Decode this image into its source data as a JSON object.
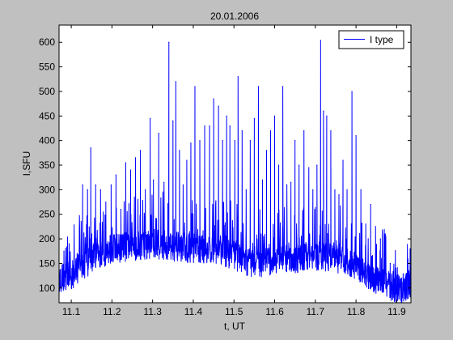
{
  "chart_data": {
    "type": "line",
    "title": "20.01.2006",
    "xlabel": "t, UT",
    "ylabel": "I,SFU",
    "xlim": [
      11.07,
      11.935
    ],
    "ylim": [
      70,
      635
    ],
    "xticks": [
      11.1,
      11.2,
      11.3,
      11.4,
      11.5,
      11.6,
      11.7,
      11.8,
      11.9
    ],
    "xtick_labels": [
      "11.1",
      "11.2",
      "11.3",
      "11.4",
      "11.5",
      "11.6",
      "11.7",
      "11.8",
      "11.9"
    ],
    "yticks": [
      100,
      150,
      200,
      250,
      300,
      350,
      400,
      450,
      500,
      550,
      600
    ],
    "ytick_labels": [
      "100",
      "150",
      "200",
      "250",
      "300",
      "350",
      "400",
      "450",
      "500",
      "550",
      "600"
    ],
    "grid": false,
    "legend_position": "top-right",
    "series": [
      {
        "name": "I type",
        "color": "#0000ff",
        "baseline": [
          [
            11.07,
            120
          ],
          [
            11.1,
            125
          ],
          [
            11.13,
            145
          ],
          [
            11.16,
            165
          ],
          [
            11.2,
            180
          ],
          [
            11.25,
            185
          ],
          [
            11.3,
            190
          ],
          [
            11.35,
            185
          ],
          [
            11.4,
            180
          ],
          [
            11.45,
            178
          ],
          [
            11.5,
            168
          ],
          [
            11.53,
            150
          ],
          [
            11.57,
            150
          ],
          [
            11.6,
            155
          ],
          [
            11.65,
            160
          ],
          [
            11.7,
            165
          ],
          [
            11.75,
            162
          ],
          [
            11.8,
            145
          ],
          [
            11.83,
            125
          ],
          [
            11.86,
            115
          ],
          [
            11.88,
            105
          ],
          [
            11.9,
            98
          ],
          [
            11.92,
            100
          ],
          [
            11.935,
            110
          ]
        ],
        "spikes": [
          [
            11.082,
            175
          ],
          [
            11.095,
            190
          ],
          [
            11.112,
            160
          ],
          [
            11.128,
            310
          ],
          [
            11.14,
            300
          ],
          [
            11.148,
            385
          ],
          [
            11.16,
            310
          ],
          [
            11.172,
            300
          ],
          [
            11.185,
            275
          ],
          [
            11.198,
            310
          ],
          [
            11.21,
            330
          ],
          [
            11.222,
            260
          ],
          [
            11.234,
            355
          ],
          [
            11.246,
            340
          ],
          [
            11.258,
            365
          ],
          [
            11.27,
            380
          ],
          [
            11.282,
            300
          ],
          [
            11.294,
            445
          ],
          [
            11.302,
            320
          ],
          [
            11.315,
            415
          ],
          [
            11.328,
            315
          ],
          [
            11.34,
            600
          ],
          [
            11.35,
            440
          ],
          [
            11.357,
            520
          ],
          [
            11.366,
            380
          ],
          [
            11.375,
            310
          ],
          [
            11.384,
            360
          ],
          [
            11.394,
            395
          ],
          [
            11.404,
            510
          ],
          [
            11.416,
            400
          ],
          [
            11.428,
            430
          ],
          [
            11.44,
            430
          ],
          [
            11.45,
            485
          ],
          [
            11.462,
            470
          ],
          [
            11.472,
            400
          ],
          [
            11.482,
            450
          ],
          [
            11.49,
            430
          ],
          [
            11.502,
            400
          ],
          [
            11.51,
            530
          ],
          [
            11.52,
            420
          ],
          [
            11.53,
            300
          ],
          [
            11.54,
            400
          ],
          [
            11.55,
            445
          ],
          [
            11.56,
            510
          ],
          [
            11.57,
            320
          ],
          [
            11.58,
            380
          ],
          [
            11.59,
            420
          ],
          [
            11.6,
            450
          ],
          [
            11.61,
            350
          ],
          [
            11.62,
            510
          ],
          [
            11.63,
            310
          ],
          [
            11.64,
            315
          ],
          [
            11.65,
            400
          ],
          [
            11.66,
            350
          ],
          [
            11.672,
            420
          ],
          [
            11.684,
            345
          ],
          [
            11.694,
            300
          ],
          [
            11.704,
            350
          ],
          [
            11.713,
            604
          ],
          [
            11.72,
            460
          ],
          [
            11.728,
            450
          ],
          [
            11.738,
            420
          ],
          [
            11.748,
            300
          ],
          [
            11.758,
            290
          ],
          [
            11.768,
            360
          ],
          [
            11.778,
            300
          ],
          [
            11.79,
            500
          ],
          [
            11.8,
            410
          ],
          [
            11.812,
            300
          ],
          [
            11.824,
            230
          ],
          [
            11.836,
            270
          ],
          [
            11.848,
            225
          ],
          [
            11.86,
            200
          ],
          [
            11.872,
            210
          ],
          [
            11.884,
            150
          ],
          [
            11.898,
            140
          ],
          [
            11.912,
            120
          ],
          [
            11.924,
            130
          ],
          [
            11.933,
            180
          ]
        ]
      }
    ]
  }
}
